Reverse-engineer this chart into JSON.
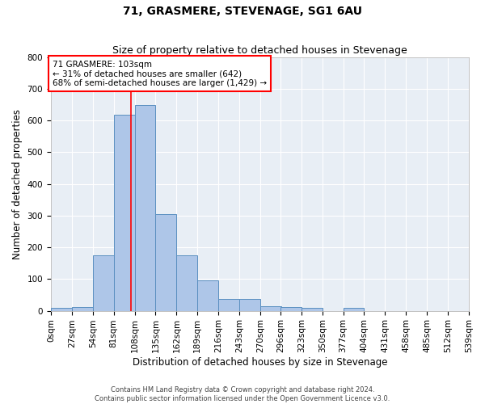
{
  "title": "71, GRASMERE, STEVENAGE, SG1 6AU",
  "subtitle": "Size of property relative to detached houses in Stevenage",
  "xlabel": "Distribution of detached houses by size in Stevenage",
  "ylabel": "Number of detached properties",
  "footer_line1": "Contains HM Land Registry data © Crown copyright and database right 2024.",
  "footer_line2": "Contains public sector information licensed under the Open Government Licence v3.0.",
  "bin_edges": [
    0,
    27,
    54,
    81,
    108,
    135,
    162,
    189,
    216,
    243,
    270,
    296,
    323,
    350,
    377,
    404,
    431,
    458,
    485,
    512,
    539
  ],
  "bar_heights": [
    8,
    12,
    175,
    618,
    650,
    305,
    175,
    97,
    38,
    38,
    15,
    12,
    10,
    0,
    8,
    0,
    0,
    0,
    0,
    0
  ],
  "bar_color": "#aec6e8",
  "bar_edge_color": "#5a8fc0",
  "property_value": 103,
  "annotation_line1": "71 GRASMERE: 103sqm",
  "annotation_line2": "← 31% of detached houses are smaller (642)",
  "annotation_line3": "68% of semi-detached houses are larger (1,429) →",
  "annotation_box_color": "white",
  "annotation_box_edge_color": "red",
  "vline_color": "red",
  "ylim": [
    0,
    800
  ],
  "yticks": [
    0,
    100,
    200,
    300,
    400,
    500,
    600,
    700,
    800
  ],
  "background_color": "#e8eef5",
  "grid_color": "white",
  "title_fontsize": 10,
  "subtitle_fontsize": 9,
  "axis_label_fontsize": 8.5,
  "tick_fontsize": 7.5,
  "annotation_fontsize": 7.5,
  "footer_fontsize": 6.0
}
